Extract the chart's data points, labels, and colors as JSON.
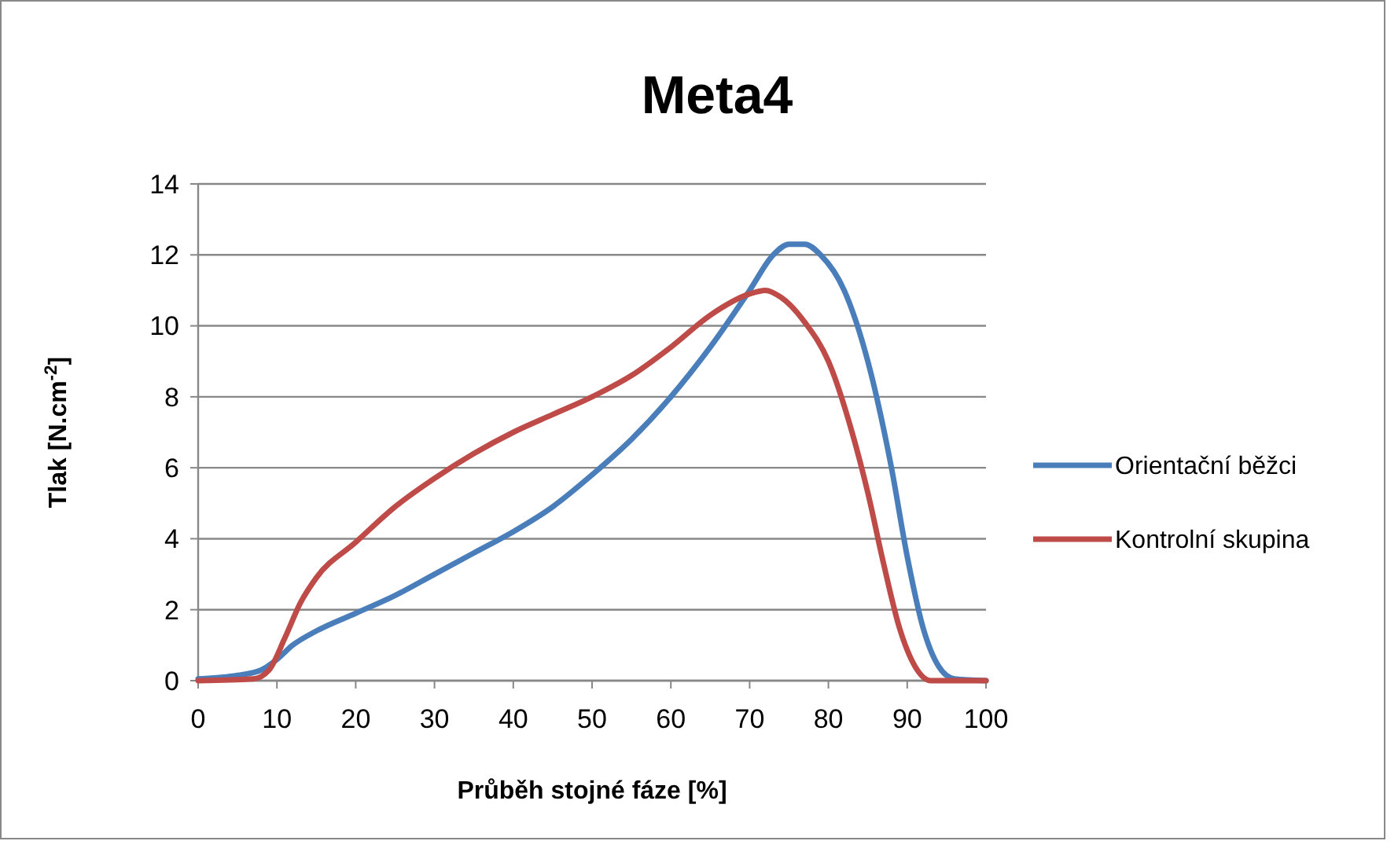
{
  "chart_data": {
    "type": "line",
    "title": "Meta4",
    "xlabel": "Průběh stojné fáze [%]",
    "ylabel": "Tlak [N.cm$^{-2}$]",
    "xlim": [
      0,
      100
    ],
    "xticks": [
      0,
      10,
      20,
      30,
      40,
      50,
      60,
      70,
      80,
      90,
      100
    ],
    "ylim": [
      0,
      14
    ],
    "yticks": [
      0,
      2,
      4,
      6,
      8,
      10,
      12,
      14
    ],
    "grid": "y",
    "legend": "right",
    "marker": "none",
    "line_style": "solid",
    "series": [
      {
        "name": "Orientační běžci",
        "color": "#4a7ebb",
        "x": [
          0,
          5,
          8,
          10,
          12,
          15,
          20,
          25,
          30,
          35,
          40,
          45,
          50,
          55,
          60,
          65,
          70,
          73,
          75,
          77,
          79,
          82,
          85,
          88,
          90,
          92,
          94,
          96,
          100
        ],
        "values": [
          0.05,
          0.15,
          0.3,
          0.6,
          1.0,
          1.4,
          1.9,
          2.4,
          3.0,
          3.6,
          4.2,
          4.9,
          5.8,
          6.8,
          8.0,
          9.4,
          11.0,
          12.0,
          12.3,
          12.3,
          12.0,
          11.0,
          9.0,
          6.0,
          3.5,
          1.5,
          0.4,
          0.05,
          0
        ]
      },
      {
        "name": "Kontrolní skupina",
        "color": "#be4b48",
        "x": [
          0,
          7,
          9,
          11,
          13,
          15,
          20,
          25,
          30,
          35,
          40,
          45,
          50,
          55,
          60,
          65,
          70,
          72,
          74,
          77,
          80,
          83,
          85,
          87,
          89,
          91,
          93,
          100
        ],
        "values": [
          0,
          0.05,
          0.3,
          1.2,
          2.2,
          2.9,
          3.9,
          4.9,
          5.7,
          6.4,
          7.0,
          7.5,
          8.0,
          8.6,
          9.4,
          10.3,
          10.9,
          11.0,
          10.8,
          10.1,
          9.0,
          7.0,
          5.3,
          3.3,
          1.5,
          0.4,
          0,
          0
        ]
      }
    ]
  }
}
